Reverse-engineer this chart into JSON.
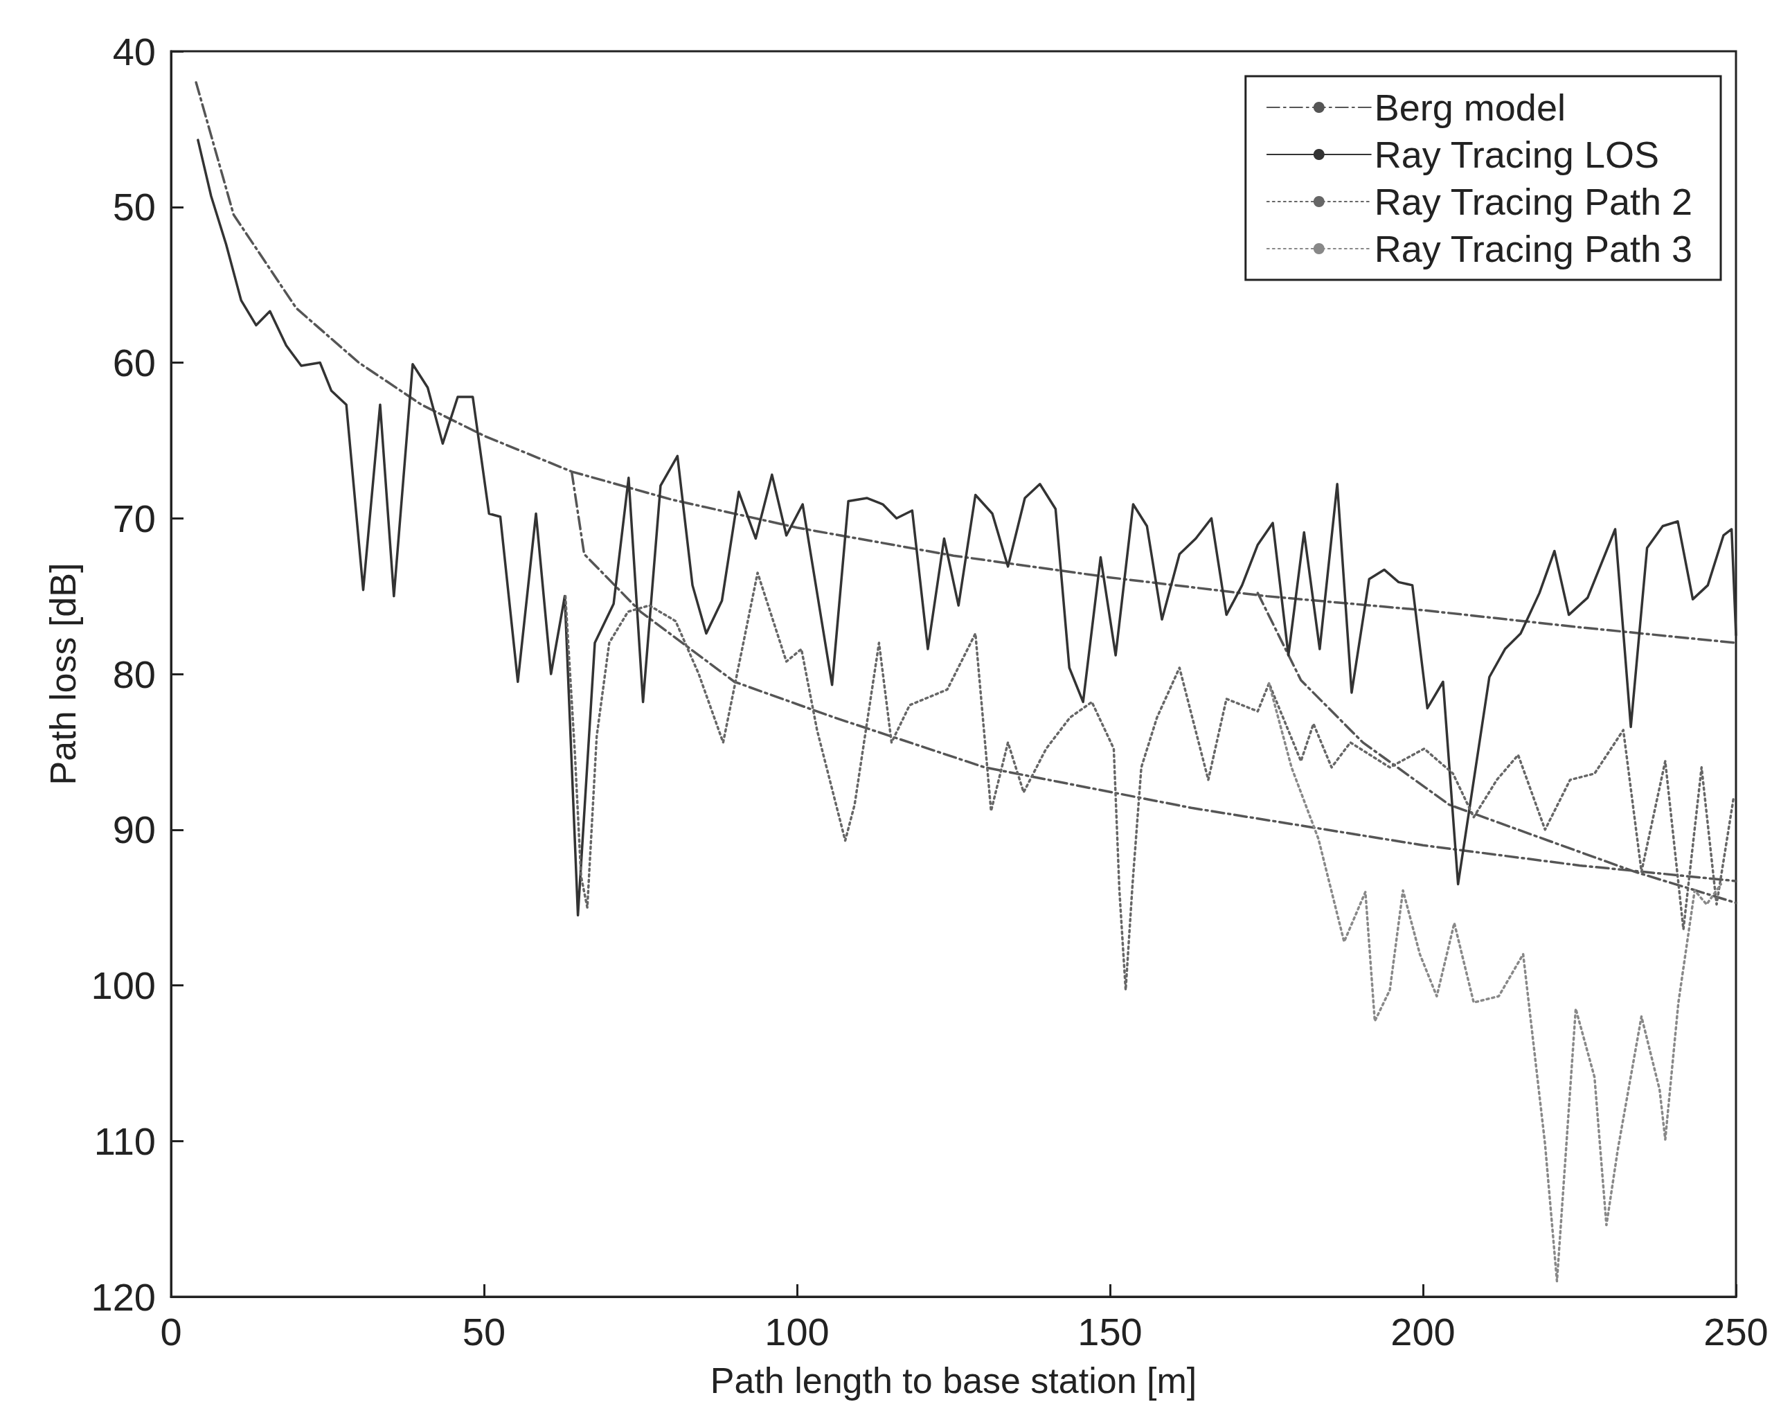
{
  "chart_data": {
    "type": "line",
    "xlabel": "Path length to base station [m]",
    "ylabel": "Path loss [dB]",
    "xlim": [
      0,
      250
    ],
    "xticks": [
      0,
      50,
      100,
      150,
      200,
      250
    ],
    "ylim": [
      120,
      40
    ],
    "yticks": [
      40,
      50,
      60,
      70,
      80,
      90,
      100,
      110,
      120
    ],
    "grid": false,
    "legend": "top right",
    "marker": "none",
    "series": [
      {
        "name": "Berg model",
        "color": "#555555",
        "line_style": "dashed",
        "x": [
          4,
          10,
          20,
          30,
          40,
          50,
          64,
          80,
          100,
          125,
          150,
          175,
          200,
          225,
          250,
          null,
          64,
          66,
          75,
          90,
          106,
          130,
          163,
          200,
          225,
          250,
          null,
          173.6,
          180.5,
          190.4,
          204.2,
          220,
          233.8,
          250
        ],
        "values": [
          42,
          50.5,
          56.5,
          60,
          62.7,
          64.7,
          67,
          68.8,
          70.6,
          72.4,
          73.8,
          75,
          75.9,
          77,
          78,
          null,
          67,
          72.3,
          76,
          80.5,
          82.8,
          86,
          88.6,
          91,
          92.3,
          93.3,
          null,
          74.8,
          80.4,
          84.4,
          88.4,
          90.7,
          92.7,
          94.7
        ]
      },
      {
        "name": "Ray Tracing LOS",
        "color": "#333333",
        "line_style": "solid",
        "x": [
          4.3,
          6.4,
          8.8,
          11.2,
          13.6,
          15.8,
          18.4,
          20.8,
          23.8,
          25.6,
          28,
          30.7,
          33.4,
          35.6,
          38.6,
          41,
          43.4,
          45.8,
          48.2,
          50.8,
          52.6,
          55.4,
          58.3,
          60.7,
          62.9,
          65,
          67.7,
          70.7,
          73.1,
          75.4,
          78.2,
          80.9,
          83.3,
          85.5,
          88,
          90.7,
          93.4,
          96,
          98.3,
          100.9,
          105.6,
          108.2,
          111.2,
          113.7,
          115.9,
          118.4,
          120.9,
          123.5,
          125.8,
          128.5,
          131.2,
          133.7,
          136.4,
          138.8,
          141.3,
          143.5,
          145.7,
          148.5,
          150.9,
          153.7,
          155.9,
          158.3,
          161.1,
          163.7,
          166.2,
          168.6,
          171.1,
          173.6,
          176,
          178.5,
          181,
          183.5,
          186.3,
          188.6,
          191.4,
          193.8,
          196.1,
          198.3,
          200.7,
          203.2,
          205.6,
          210.6,
          213.1,
          215.6,
          218.6,
          221,
          223.3,
          226.3,
          230.7,
          233.2,
          235.8,
          238.3,
          240.7,
          243.1,
          245.5,
          248,
          249.3,
          250
        ],
        "values": [
          45.7,
          49.3,
          52.4,
          56,
          57.6,
          56.7,
          58.9,
          60.2,
          60,
          61.8,
          62.7,
          74.6,
          62.7,
          75,
          60.1,
          61.6,
          65.2,
          62.2,
          62.2,
          69.7,
          69.9,
          80.5,
          69.7,
          80,
          75,
          95.5,
          78,
          75.5,
          67.4,
          81.8,
          67.9,
          66,
          74.3,
          77.4,
          75.3,
          68.3,
          71.3,
          67.2,
          71.1,
          69.1,
          80.7,
          68.9,
          68.7,
          69.1,
          70,
          69.5,
          78.4,
          71.3,
          75.6,
          68.5,
          69.7,
          73.1,
          68.7,
          67.8,
          69.4,
          79.6,
          81.8,
          72.5,
          78.8,
          69.1,
          70.5,
          76.5,
          72.3,
          71.3,
          70,
          76.2,
          74.3,
          71.7,
          70.3,
          78.8,
          70.9,
          78.4,
          67.8,
          81.2,
          73.9,
          73.3,
          74.1,
          74.3,
          82.2,
          80.5,
          93.5,
          80.2,
          78.4,
          77.4,
          74.8,
          72.1,
          76.2,
          75.1,
          70.7,
          83.4,
          71.9,
          70.5,
          70.2,
          75.2,
          74.3,
          71.1,
          70.7,
          77.5
        ]
      },
      {
        "name": "Ray Tracing Path 2",
        "color": "#666666",
        "line_style": "dotted",
        "x": [
          63,
          64.5,
          65.5,
          66.5,
          68,
          70,
          73,
          76.4,
          80.6,
          84.3,
          88.2,
          93.7,
          98.3,
          100.7,
          103.2,
          107.7,
          109.2,
          113.1,
          115.1,
          118,
          124,
          128.5,
          131,
          133.7,
          136.2,
          139.8,
          143.6,
          147.1,
          150.6,
          151.5,
          152.5,
          153.6,
          155,
          157.5,
          161.1,
          165.7,
          168.6,
          173.6,
          175.4,
          180.5,
          182.5,
          185.4,
          188.4,
          194.7,
          200.2,
          204.8,
          208.1,
          211.8,
          215.2,
          219.5,
          223.5,
          227.4,
          232,
          234.9,
          238.7,
          241.6,
          244.5,
          246.9,
          249.6
        ],
        "values": [
          75,
          85,
          93,
          95,
          84,
          78,
          76,
          75.6,
          76.6,
          80,
          84.4,
          73.5,
          79.2,
          78.4,
          83.6,
          90.7,
          88.4,
          78,
          84.4,
          82,
          81,
          77.4,
          88.8,
          84.4,
          87.6,
          84.8,
          82.8,
          81.8,
          84.8,
          93.9,
          100.3,
          93.5,
          86,
          82.8,
          79.6,
          86.8,
          81.6,
          82.4,
          80.6,
          85.6,
          83.2,
          86,
          84.4,
          86,
          84.8,
          86.4,
          89.2,
          86.8,
          85.2,
          90,
          86.8,
          86.4,
          83.6,
          92.7,
          85.6,
          96.4,
          86,
          94.8,
          88
        ]
      },
      {
        "name": "Ray Tracing Path 3",
        "color": "#888888",
        "line_style": "dotted",
        "x": [
          175.4,
          179,
          183.3,
          187.4,
          190.8,
          192.3,
          194.7,
          196.8,
          199.5,
          202.2,
          205,
          208.1,
          212.1,
          216,
          219.5,
          221.4,
          224.4,
          227.4,
          229.3,
          231.1,
          234.9,
          237.8,
          238.7,
          240.8,
          243.4,
          245.3,
          247.6
        ],
        "values": [
          80.6,
          86,
          90.6,
          97.2,
          94,
          102.3,
          100.3,
          93.9,
          98,
          100.7,
          96,
          101.1,
          100.7,
          98,
          110.2,
          119,
          101.5,
          105.9,
          115.4,
          110.6,
          102,
          106.7,
          109.9,
          101.1,
          93.9,
          94.8,
          93.5
        ]
      }
    ]
  }
}
